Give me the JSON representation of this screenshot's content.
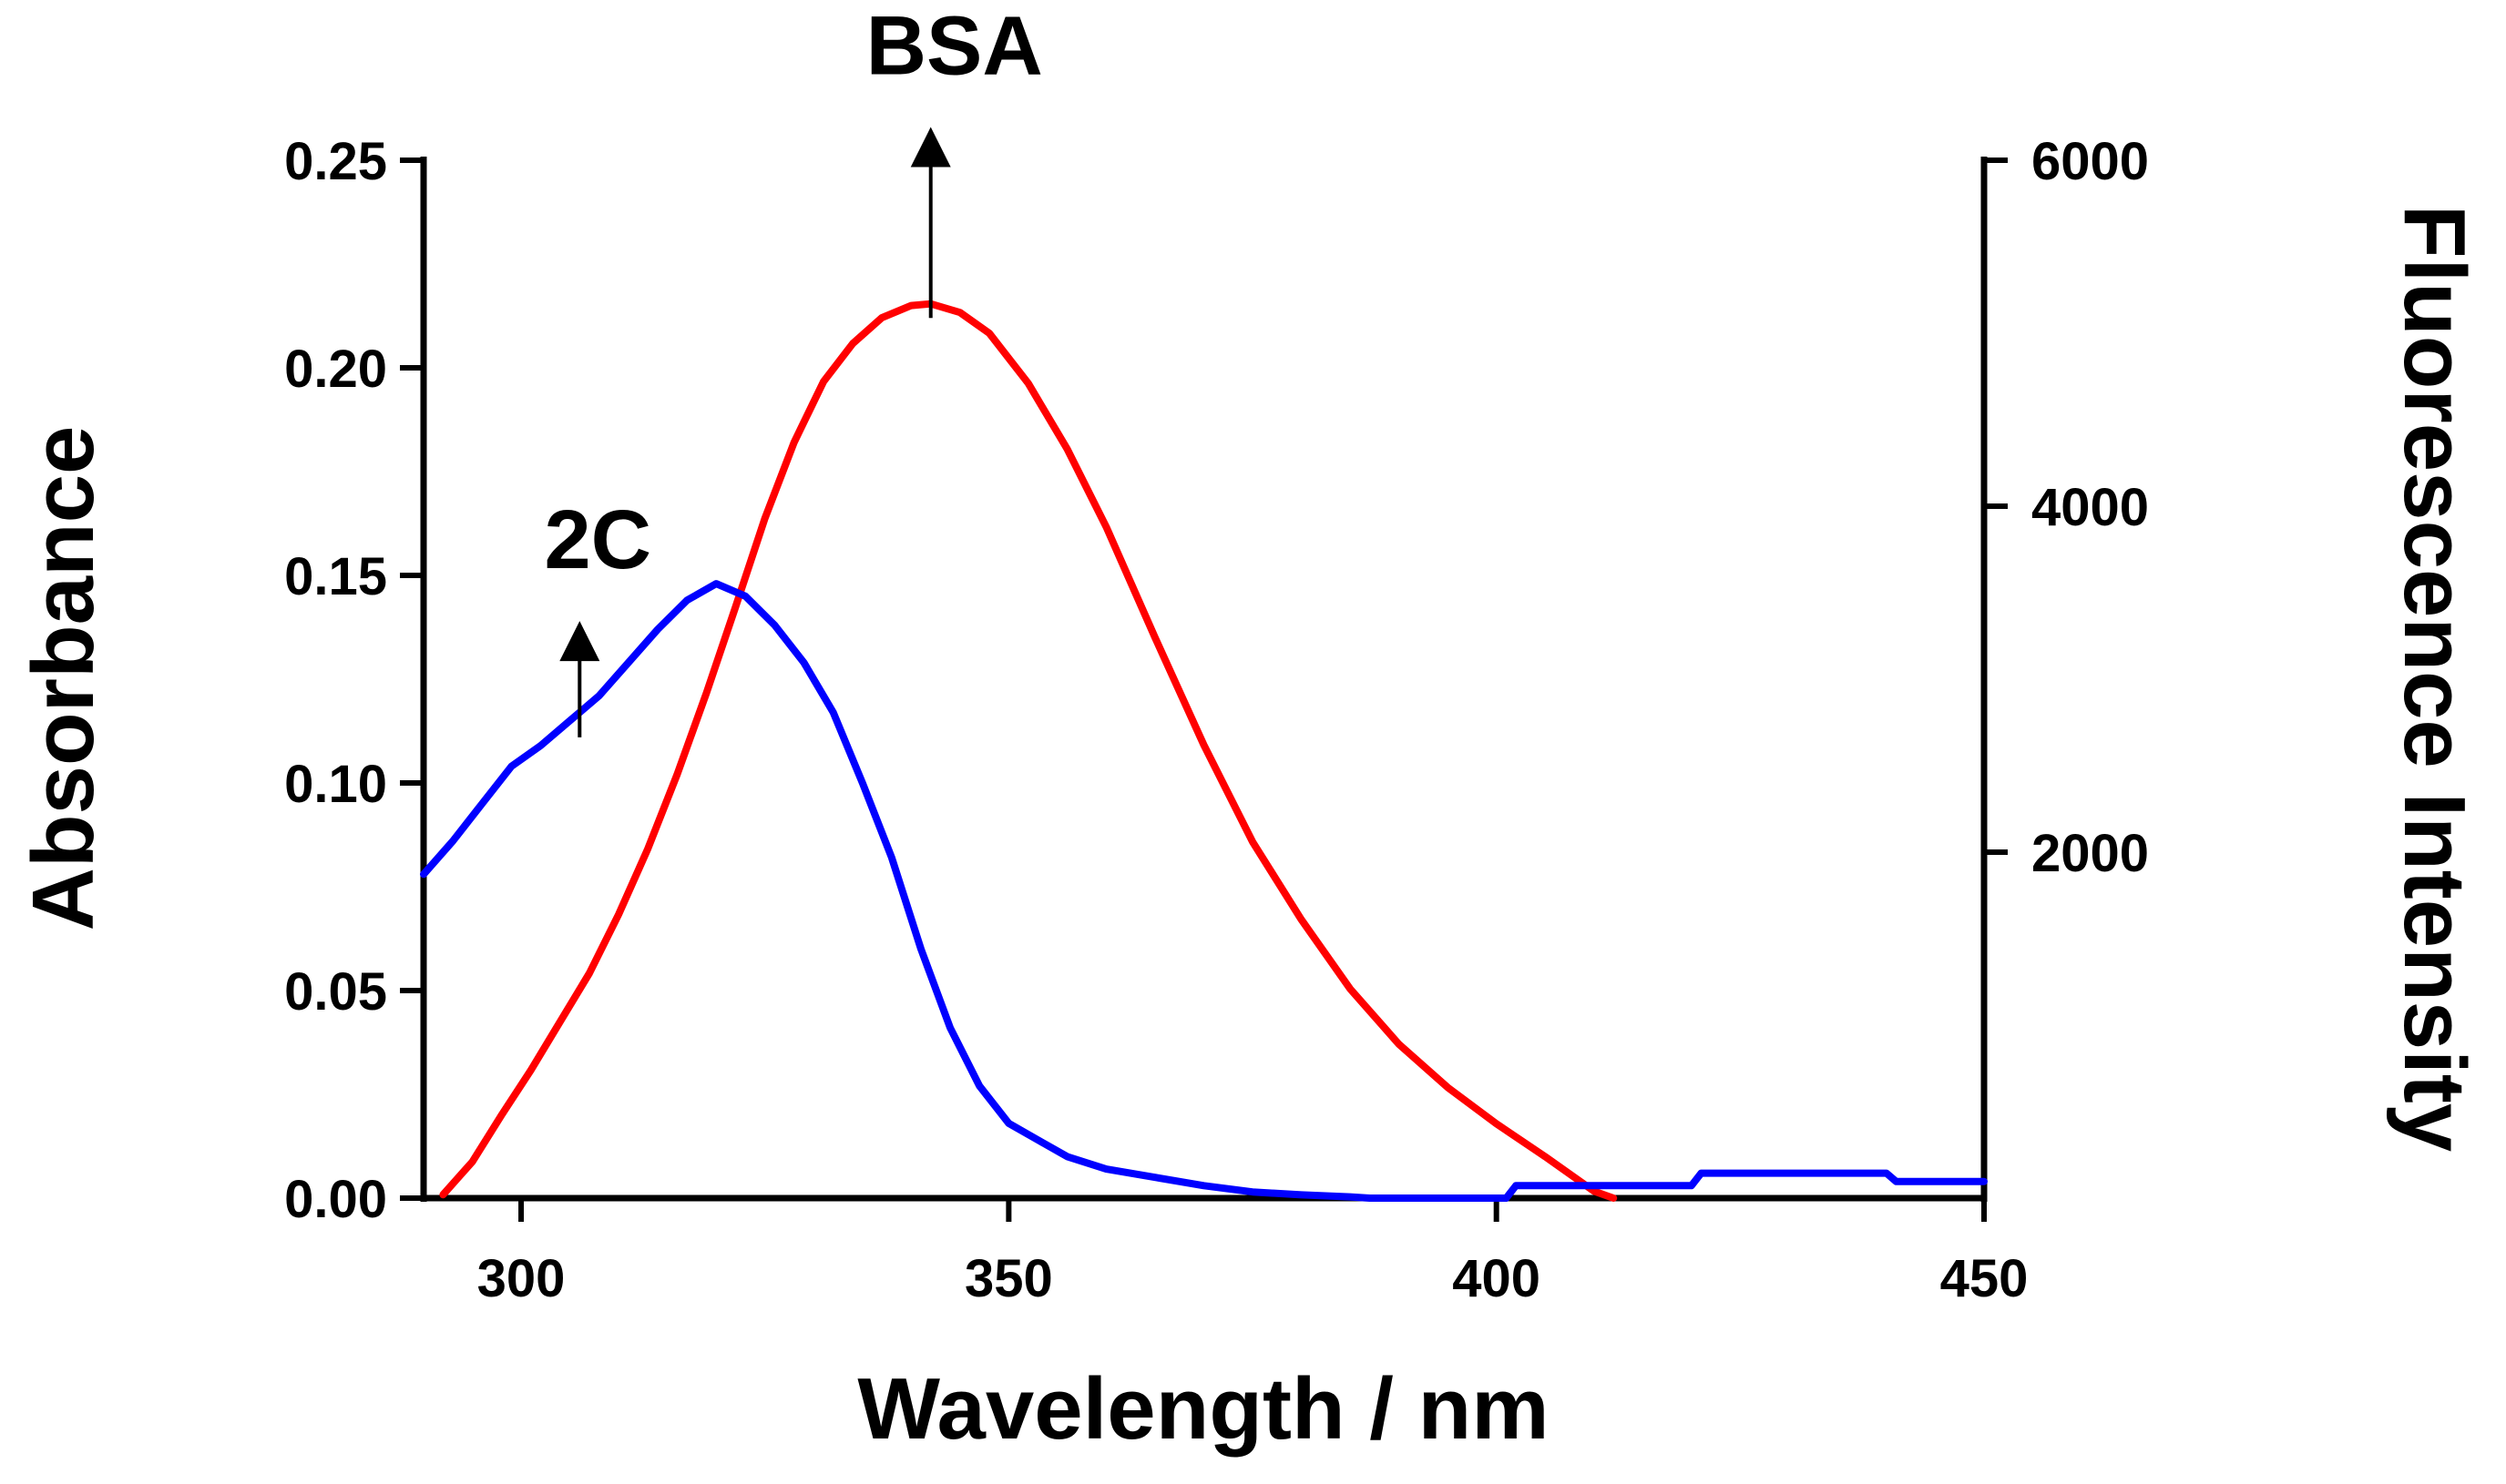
{
  "chart_data": {
    "type": "line",
    "xlabel": "Wavelength / nm",
    "ylabel_left": "Absorbance",
    "ylabel_right": "Fluorescence Intensity",
    "xlim": [
      290,
      450
    ],
    "ylim_left": [
      0,
      0.25
    ],
    "ylim_right": [
      0,
      6000
    ],
    "x_ticks": [
      300,
      350,
      400,
      450
    ],
    "y_left_ticks": [
      "0.00",
      "0.05",
      "0.10",
      "0.15",
      "0.20",
      "0.25"
    ],
    "y_right_ticks": [
      2000,
      4000,
      6000
    ],
    "grid": false,
    "legend": "none",
    "annotations": [
      {
        "text": "BSA",
        "x": 342,
        "arrow_from_y": 0.212,
        "arrow_to_y": 0.258
      },
      {
        "text": "2C",
        "x": 306,
        "arrow_from_y": 0.111,
        "arrow_to_y": 0.139
      }
    ],
    "series": [
      {
        "axis": "right",
        "color": "#ff0000",
        "x": [
          292,
          295,
          298,
          301,
          304,
          307,
          310,
          313,
          316,
          319,
          322,
          325,
          328,
          331,
          334,
          337,
          340,
          342,
          345,
          348,
          352,
          356,
          360,
          365,
          370,
          375,
          380,
          385,
          390,
          395,
          400,
          405,
          410,
          412
        ],
        "y": [
          20,
          210,
          480,
          740,
          1020,
          1300,
          1640,
          2020,
          2450,
          2920,
          3420,
          3930,
          4370,
          4720,
          4940,
          5090,
          5160,
          5170,
          5120,
          5000,
          4710,
          4330,
          3880,
          3240,
          2620,
          2060,
          1610,
          1210,
          890,
          640,
          430,
          240,
          40,
          0
        ]
      },
      {
        "axis": "left",
        "color": "#0000ff",
        "x": [
          290,
          293,
          296,
          299,
          302,
          305,
          308,
          311,
          314,
          317,
          320,
          323,
          326,
          329,
          332,
          335,
          338,
          341,
          344,
          347,
          350,
          353,
          356,
          360,
          365,
          370,
          375,
          380,
          385,
          387,
          401,
          402,
          420,
          421,
          440,
          441,
          450
        ],
        "y": [
          0.078,
          0.086,
          0.095,
          0.104,
          0.109,
          0.115,
          0.121,
          0.129,
          0.137,
          0.144,
          0.148,
          0.145,
          0.138,
          0.129,
          0.117,
          0.1,
          0.082,
          0.06,
          0.041,
          0.027,
          0.018,
          0.014,
          0.01,
          0.007,
          0.005,
          0.003,
          0.0015,
          0.0008,
          0.0003,
          0.0,
          0.0,
          0.003,
          0.003,
          0.006,
          0.006,
          0.004,
          0.004
        ]
      }
    ]
  }
}
